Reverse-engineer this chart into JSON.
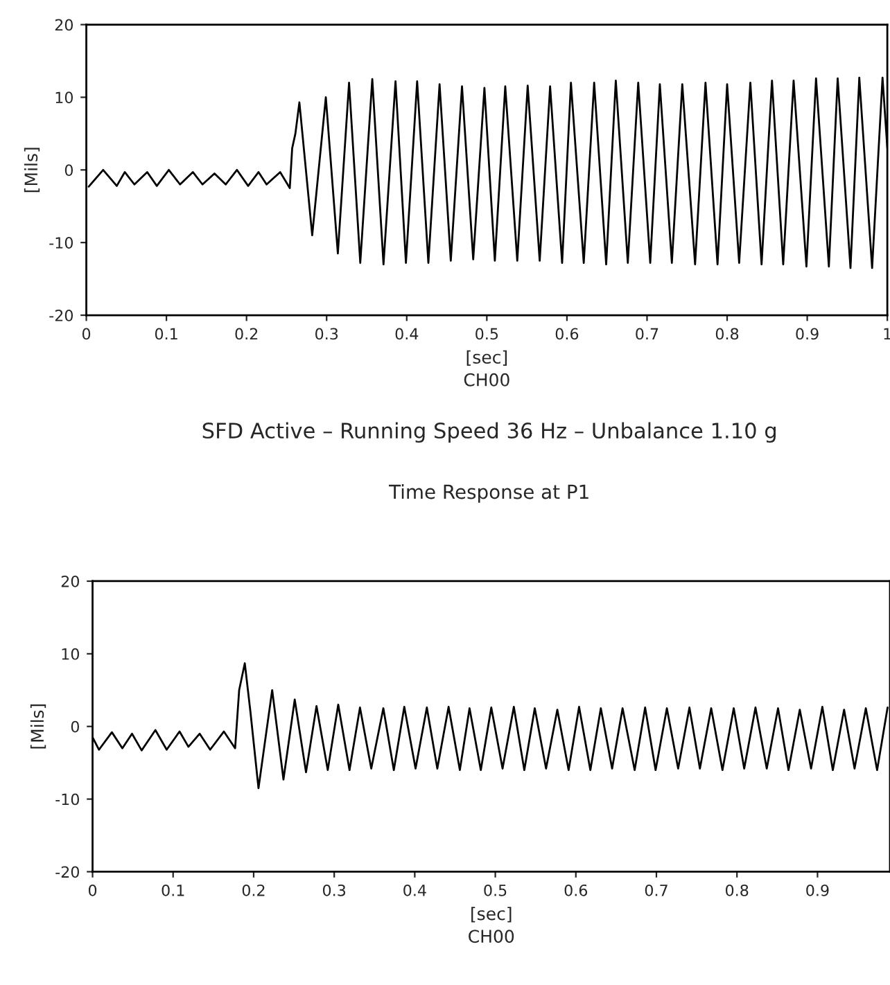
{
  "chart_data": [
    {
      "type": "line",
      "xlabel": "[sec]",
      "ylabel": "[Mils]",
      "annotations": [
        "CH00"
      ],
      "xlim": [
        0,
        1
      ],
      "ylim": [
        -20,
        20
      ],
      "xticks": [
        0,
        0.1,
        0.2,
        0.3,
        0.4,
        0.5,
        0.6,
        0.7,
        0.8,
        0.9,
        1
      ],
      "yticks": [
        -20,
        -10,
        0,
        10,
        20
      ],
      "grid": false,
      "legend": false,
      "series": [
        {
          "color": "#000000",
          "x": [
            0.003,
            0.021,
            0.038,
            0.048,
            0.06,
            0.076,
            0.088,
            0.103,
            0.117,
            0.133,
            0.145,
            0.16,
            0.174,
            0.188,
            0.202,
            0.215,
            0.225,
            0.242,
            0.254,
            0.257,
            0.261,
            0.266,
            0.282,
            0.299,
            0.314,
            0.328,
            0.342,
            0.357,
            0.371,
            0.386,
            0.399,
            0.413,
            0.427,
            0.441,
            0.455,
            0.469,
            0.483,
            0.497,
            0.51,
            0.523,
            0.538,
            0.551,
            0.566,
            0.579,
            0.594,
            0.605,
            0.621,
            0.634,
            0.649,
            0.661,
            0.676,
            0.689,
            0.704,
            0.716,
            0.731,
            0.744,
            0.76,
            0.773,
            0.788,
            0.8,
            0.815,
            0.829,
            0.843,
            0.856,
            0.87,
            0.883,
            0.899,
            0.911,
            0.927,
            0.938,
            0.954,
            0.965,
            0.981,
            0.994,
            1.0
          ],
          "values": [
            -2.3,
            0,
            -2.2,
            -0.3,
            -2,
            -0.3,
            -2.2,
            0,
            -2,
            -0.3,
            -2,
            -0.5,
            -2,
            0,
            -2.2,
            -0.3,
            -2,
            -0.3,
            -2.5,
            3,
            5,
            9.3,
            -9,
            10,
            -11.5,
            12,
            -12.8,
            12.5,
            -13,
            12.2,
            -12.8,
            12.2,
            -12.8,
            11.8,
            -12.5,
            11.5,
            -12.3,
            11.3,
            -12.5,
            11.5,
            -12.5,
            11.6,
            -12.5,
            11.5,
            -12.8,
            12,
            -12.8,
            12,
            -13,
            12.3,
            -12.8,
            12,
            -12.8,
            11.8,
            -12.8,
            11.8,
            -13,
            12,
            -13,
            11.8,
            -12.8,
            12,
            -13,
            12.3,
            -13,
            12.3,
            -13.3,
            12.6,
            -13.3,
            12.6,
            -13.5,
            12.7,
            -13.5,
            12.7,
            3
          ]
        }
      ]
    },
    {
      "type": "line",
      "title": "SFD Active – Running Speed 36 Hz – Unbalance 1.10 g",
      "subtitle": "Time Response at P1",
      "xlabel": "[sec]",
      "ylabel": "[Mils]",
      "annotations": [
        "CH00"
      ],
      "xlim": [
        0,
        0.99
      ],
      "ylim": [
        -20,
        20
      ],
      "xticks": [
        0,
        0.1,
        0.2,
        0.3,
        0.4,
        0.5,
        0.6,
        0.7,
        0.8,
        0.9
      ],
      "yticks": [
        -20,
        -10,
        0,
        10,
        20
      ],
      "grid": false,
      "legend": false,
      "series": [
        {
          "color": "#000000",
          "x": [
            0.0,
            0.008,
            0.024,
            0.037,
            0.049,
            0.061,
            0.078,
            0.092,
            0.108,
            0.119,
            0.133,
            0.146,
            0.163,
            0.177,
            0.182,
            0.189,
            0.196,
            0.206,
            0.223,
            0.237,
            0.251,
            0.265,
            0.278,
            0.292,
            0.305,
            0.319,
            0.332,
            0.346,
            0.361,
            0.374,
            0.387,
            0.401,
            0.415,
            0.428,
            0.442,
            0.456,
            0.468,
            0.482,
            0.495,
            0.509,
            0.523,
            0.536,
            0.549,
            0.563,
            0.577,
            0.591,
            0.604,
            0.618,
            0.631,
            0.645,
            0.658,
            0.673,
            0.686,
            0.699,
            0.713,
            0.727,
            0.741,
            0.754,
            0.768,
            0.782,
            0.796,
            0.809,
            0.823,
            0.837,
            0.851,
            0.864,
            0.878,
            0.892,
            0.906,
            0.919,
            0.933,
            0.946,
            0.96,
            0.974,
            0.987
          ],
          "values": [
            -1.5,
            -3.2,
            -0.8,
            -3,
            -1,
            -3.3,
            -0.5,
            -3.2,
            -0.7,
            -2.8,
            -1,
            -3.2,
            -0.7,
            -3,
            5,
            8.7,
            2,
            -8.5,
            5,
            -7.3,
            3.7,
            -6.3,
            2.8,
            -6,
            3,
            -6,
            2.6,
            -5.8,
            2.5,
            -6,
            2.7,
            -5.8,
            2.6,
            -5.8,
            2.7,
            -6,
            2.5,
            -6,
            2.6,
            -5.8,
            2.7,
            -6,
            2.5,
            -5.8,
            2.3,
            -6,
            2.7,
            -6,
            2.5,
            -5.8,
            2.5,
            -6,
            2.6,
            -6,
            2.5,
            -5.8,
            2.6,
            -5.8,
            2.5,
            -6,
            2.5,
            -5.8,
            2.6,
            -5.8,
            2.5,
            -6,
            2.3,
            -5.8,
            2.7,
            -6,
            2.3,
            -5.8,
            2.5,
            -6,
            2.6
          ]
        }
      ]
    }
  ]
}
